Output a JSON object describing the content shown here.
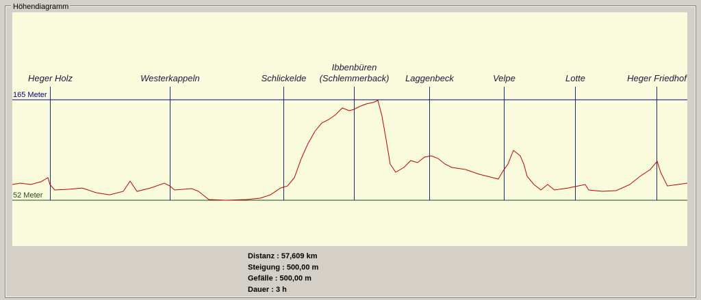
{
  "window": {
    "title": "Höhendiagramm"
  },
  "chart_data": {
    "type": "line",
    "x": [
      0,
      0.7,
      1.58,
      2.45,
      3.04,
      3.21,
      3.62,
      4.79,
      5.96,
      7.13,
      8.3,
      9.47,
      10.05,
      10.64,
      11.8,
      12.97,
      13.44,
      13.85,
      15.31,
      15.89,
      16.77,
      18.23,
      19.98,
      21.15,
      22.03,
      22.9,
      23.49,
      24.07,
      24.66,
      25.24,
      25.83,
      26.41,
      27.0,
      27.58,
      28.16,
      28.75,
      29.15,
      29.62,
      30.21,
      30.79,
      31.2,
      31.55,
      31.96,
      32.25,
      32.72,
      33.42,
      34.0,
      34.59,
      35.17,
      35.76,
      36.34,
      36.93,
      37.51,
      38.68,
      39.85,
      41.02,
      41.48,
      41.89,
      42.3,
      42.77,
      43.35,
      43.65,
      43.94,
      44.52,
      45.11,
      45.69,
      46.27,
      47.44,
      48.03,
      48.9,
      49.19,
      50.36,
      51.53,
      52.7,
      53.58,
      54.45,
      55.04,
      55.33,
      55.91,
      56.79,
      57.61
    ],
    "series": [
      {
        "color": "#c00000",
        "values": [
          69.7,
          71.2,
          69.7,
          72.8,
          77.4,
          69.7,
          63.5,
          64.3,
          65.8,
          60.5,
          58.1,
          62.0,
          73.5,
          62.0,
          65.8,
          71.2,
          68.1,
          63.5,
          65.1,
          62.0,
          52.8,
          52.0,
          52.8,
          54.3,
          58.1,
          65.8,
          68.1,
          77.4,
          98.9,
          115.8,
          129.6,
          138.9,
          142.7,
          148.1,
          155.8,
          152.7,
          154.2,
          157.3,
          160.4,
          161.9,
          164.2,
          146.6,
          115.8,
          92.7,
          83.5,
          88.9,
          96.6,
          94.3,
          100.4,
          102.0,
          98.9,
          92.7,
          88.9,
          86.6,
          81.2,
          77.4,
          75.8,
          85.1,
          92.7,
          108.1,
          102.0,
          92.7,
          78.9,
          69.7,
          63.5,
          69.7,
          63.5,
          65.8,
          67.4,
          69.7,
          63.5,
          62.0,
          62.8,
          69.7,
          78.9,
          86.6,
          95.8,
          83.5,
          68.1,
          69.7,
          71.2
        ]
      }
    ],
    "xlim": [
      0,
      57.609
    ],
    "ylim": [
      0.5,
      263.4
    ],
    "yticks": [
      {
        "value": 165,
        "label": "165 Meter",
        "color": "#000080"
      },
      {
        "value": 52,
        "label": "52 Meter",
        "color": "#1e4a1e"
      }
    ],
    "places": [
      {
        "lines": [
          "Heger Holz"
        ],
        "x": 3.21
      },
      {
        "lines": [
          "Westerkappeln"
        ],
        "x": 13.44
      },
      {
        "lines": [
          "Schlickelde"
        ],
        "x": 23.14
      },
      {
        "lines": [
          "Ibbenbüren",
          "(Schlemmerback)"
        ],
        "x": 29.15
      },
      {
        "lines": [
          "Laggenbeck"
        ],
        "x": 35.58
      },
      {
        "lines": [
          "Velpe"
        ],
        "x": 41.95
      },
      {
        "lines": [
          "Lotte"
        ],
        "x": 48.03
      },
      {
        "lines": [
          "Heger Friedhof"
        ],
        "x": 54.98
      }
    ]
  },
  "stats": [
    "Distanz : 57,609 km",
    "Steigung : 500,00 m",
    "Gefälle : 500,00 m",
    "Dauer : 3 h"
  ]
}
